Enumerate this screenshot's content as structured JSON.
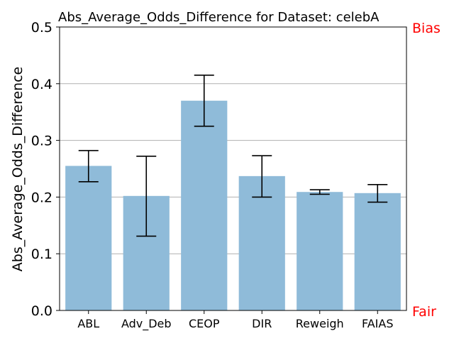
{
  "chart_data": {
    "type": "bar",
    "title": "Abs_Average_Odds_Difference for Dataset: celebA",
    "ylabel": "Abs_Average_Odds_Difference",
    "xlabel": "",
    "categories": [
      "ABL",
      "Adv_Deb",
      "CEOP",
      "DIR",
      "Reweigh",
      "FAIAS"
    ],
    "values": [
      0.255,
      0.202,
      0.37,
      0.237,
      0.209,
      0.207
    ],
    "error_low": [
      0.227,
      0.131,
      0.325,
      0.2,
      0.205,
      0.191
    ],
    "error_high": [
      0.282,
      0.272,
      0.415,
      0.273,
      0.213,
      0.222
    ],
    "ylim": [
      0.0,
      0.5
    ],
    "yticks": [
      "0.0",
      "0.1",
      "0.2",
      "0.3",
      "0.4",
      "0.5"
    ],
    "grid": "horizontal",
    "bar_color": "#8fbbd9",
    "annotations": {
      "top_right": "Bias",
      "bottom_right": "Fair",
      "color": "#ff0000"
    }
  }
}
